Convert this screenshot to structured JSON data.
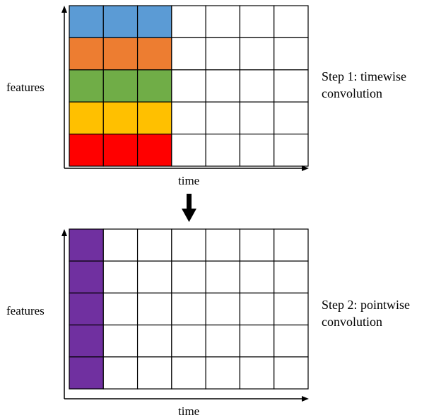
{
  "panels": [
    {
      "y_label": "features",
      "x_label": "time",
      "rows": 5,
      "cols": 7,
      "filled_cols": 3,
      "row_colors": [
        "#5B9BD5",
        "#ED7D31",
        "#70AD47",
        "#FFC000",
        "#FF0000"
      ],
      "caption_line1": "Step 1: timewise",
      "caption_line2": "convolution"
    },
    {
      "y_label": "features",
      "x_label": "time",
      "rows": 5,
      "cols": 7,
      "filled_cols": 1,
      "fill_color": "#7030A0",
      "caption_line1": "Step 2: pointwise",
      "caption_line2": "convolution"
    }
  ],
  "colors": {
    "grid_line": "#000000",
    "arrow": "#000000"
  }
}
